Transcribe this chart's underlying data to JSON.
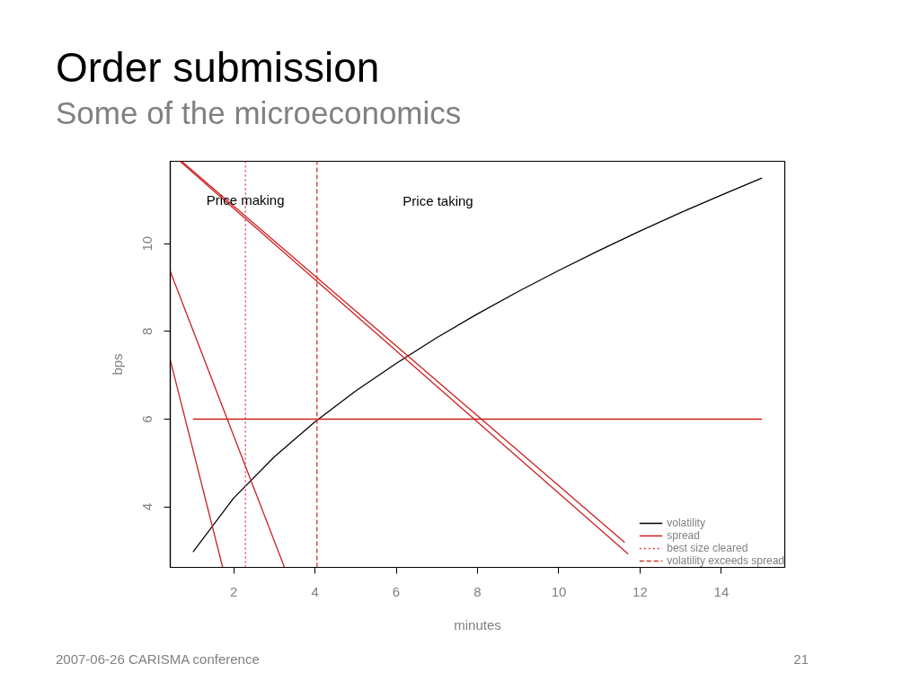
{
  "chart_data": {
    "type": "line",
    "title": "Order submission",
    "subtitle": "Some of the microeconomics",
    "xlabel": "minutes",
    "ylabel": "bps",
    "xlim": [
      0.44,
      15.56
    ],
    "ylim": [
      2.62,
      11.88
    ],
    "xticks": [
      2,
      4,
      6,
      8,
      10,
      12,
      14
    ],
    "yticks": [
      4,
      6,
      8,
      10
    ],
    "series": [
      {
        "name": "volatility",
        "color": "#000000",
        "x": [
          1,
          2,
          3,
          4,
          5,
          6,
          7,
          8,
          9,
          10,
          11,
          12,
          13,
          14,
          15
        ],
        "values": [
          2.97,
          4.2,
          5.14,
          5.94,
          6.64,
          7.27,
          7.86,
          8.4,
          8.91,
          9.39,
          9.85,
          10.29,
          10.71,
          11.11,
          11.5
        ]
      },
      {
        "name": "spread",
        "color": "#cc2020",
        "x": [
          1,
          15
        ],
        "values": [
          6,
          6
        ]
      },
      {
        "color": "#cc2020",
        "x": [
          0.44,
          1.73
        ],
        "values": [
          7.35,
          2.62
        ]
      },
      {
        "color": "#cc2020",
        "x": [
          0.44,
          3.25
        ],
        "values": [
          9.37,
          2.62
        ]
      },
      {
        "color": "#cc2020",
        "x": [
          0.72,
          11.62
        ],
        "values": [
          11.88,
          3.19
        ]
      },
      {
        "color": "#cc2020",
        "x": [
          0.68,
          11.71
        ],
        "values": [
          11.88,
          2.92
        ]
      },
      {
        "name": "best size cleared",
        "color": "#d83a4a",
        "line_style": "dotted",
        "x": [
          2.29,
          2.29
        ],
        "values": [
          2.62,
          11.88
        ]
      },
      {
        "name": "volatility exceeds spread",
        "color": "#d83030",
        "line_style": "dashed",
        "x": [
          4.05,
          4.05
        ],
        "values": [
          2.62,
          11.88
        ]
      }
    ],
    "annotations": [
      {
        "text": "Price making",
        "x": 2.29,
        "y": 11.0
      },
      "Price taking",
      "2007-06-26 CARISMA conference",
      "21"
    ],
    "legend": "bottom right",
    "grid": false,
    "line_style": "solid"
  }
}
